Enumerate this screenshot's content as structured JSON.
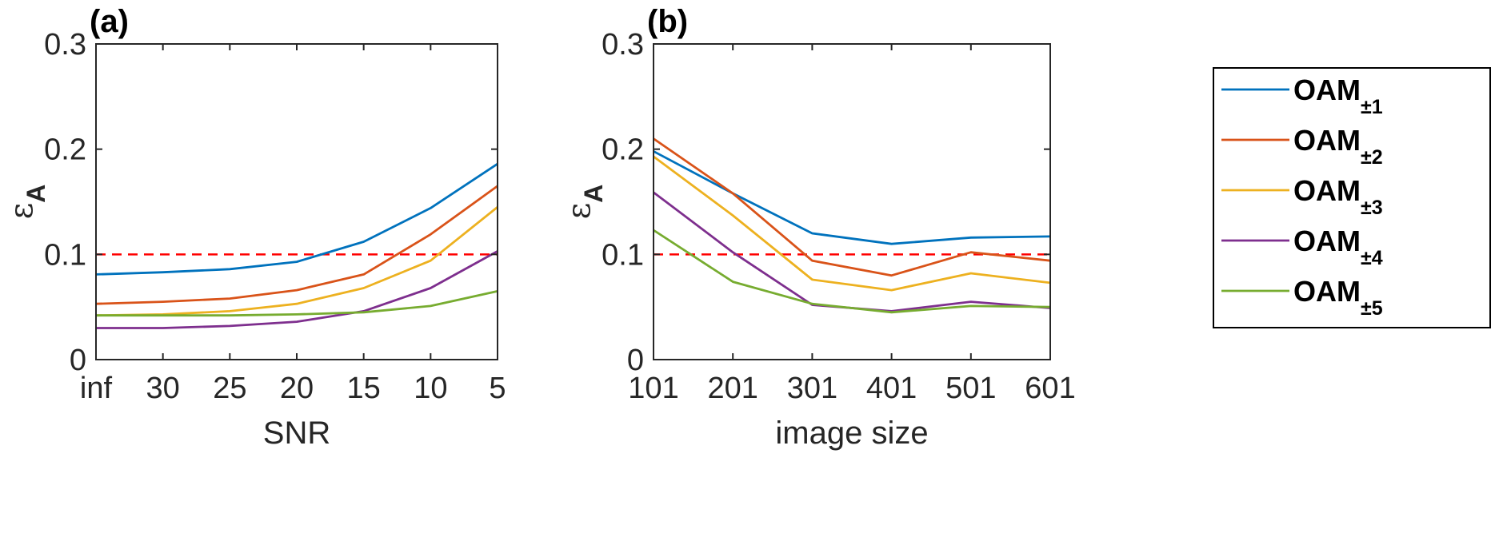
{
  "chart_data": [
    {
      "type": "line",
      "panel_label": "(a)",
      "xlabel": "SNR",
      "ylabel": {
        "symbol": "ε",
        "subscript": "A"
      },
      "categories": [
        "inf",
        "30",
        "25",
        "20",
        "15",
        "10",
        "5"
      ],
      "ylim": [
        0,
        0.3
      ],
      "yticks": [
        "0",
        "0.1",
        "0.2",
        "0.3"
      ],
      "threshold": 0.1,
      "series": [
        {
          "color": "#0072BD",
          "values": [
            0.081,
            0.083,
            0.086,
            0.093,
            0.112,
            0.144,
            0.186
          ]
        },
        {
          "color": "#D95319",
          "values": [
            0.053,
            0.055,
            0.058,
            0.066,
            0.081,
            0.119,
            0.165
          ]
        },
        {
          "color": "#EDB120",
          "values": [
            0.042,
            0.043,
            0.046,
            0.053,
            0.068,
            0.094,
            0.145
          ]
        },
        {
          "color": "#7E2F8E",
          "values": [
            0.03,
            0.03,
            0.032,
            0.036,
            0.046,
            0.068,
            0.103
          ]
        },
        {
          "color": "#77AC30",
          "values": [
            0.042,
            0.042,
            0.042,
            0.043,
            0.045,
            0.051,
            0.065
          ]
        }
      ]
    },
    {
      "type": "line",
      "panel_label": "(b)",
      "xlabel": "image size",
      "ylabel": {
        "symbol": "ε",
        "subscript": "A"
      },
      "categories": [
        "101",
        "201",
        "301",
        "401",
        "501",
        "601"
      ],
      "ylim": [
        0,
        0.3
      ],
      "yticks": [
        "0",
        "0.1",
        "0.2",
        "0.3"
      ],
      "threshold": 0.1,
      "series": [
        {
          "color": "#0072BD",
          "values": [
            0.198,
            0.158,
            0.12,
            0.11,
            0.116,
            0.117
          ]
        },
        {
          "color": "#D95319",
          "values": [
            0.21,
            0.158,
            0.094,
            0.08,
            0.102,
            0.094
          ]
        },
        {
          "color": "#EDB120",
          "values": [
            0.193,
            0.137,
            0.076,
            0.066,
            0.082,
            0.073
          ]
        },
        {
          "color": "#7E2F8E",
          "values": [
            0.159,
            0.102,
            0.052,
            0.046,
            0.055,
            0.049
          ]
        },
        {
          "color": "#77AC30",
          "values": [
            0.123,
            0.074,
            0.053,
            0.045,
            0.051,
            0.05
          ]
        }
      ]
    }
  ],
  "legend": {
    "entries": [
      {
        "text": "OAM",
        "sub": "±1",
        "color": "#0072BD"
      },
      {
        "text": "OAM",
        "sub": "±2",
        "color": "#D95319"
      },
      {
        "text": "OAM",
        "sub": "±3",
        "color": "#EDB120"
      },
      {
        "text": "OAM",
        "sub": "±4",
        "color": "#7E2F8E"
      },
      {
        "text": "OAM",
        "sub": "±5",
        "color": "#77AC30"
      }
    ]
  },
  "colors": {
    "threshold_line": "#FF0000",
    "axes": "#262626"
  }
}
